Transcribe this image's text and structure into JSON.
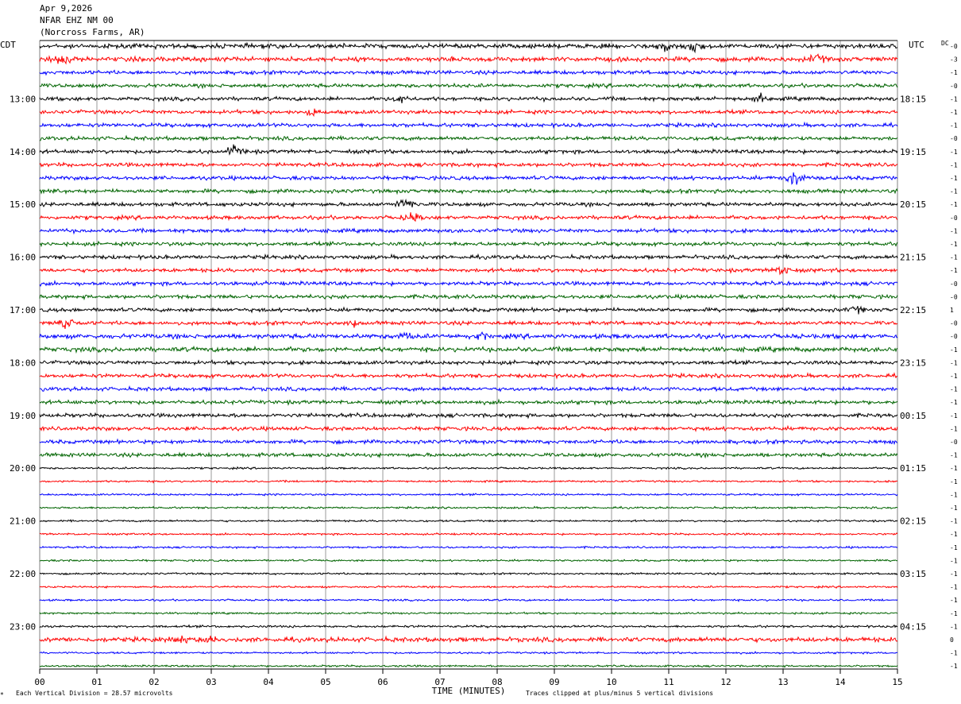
{
  "header": {
    "date": "Apr 9,2026",
    "station": "NFAR EHZ NM 00",
    "location": "(Norcross Farms, AR)"
  },
  "left_axis_title": "CDT",
  "right_axis_title": "UTC",
  "dc_title": "DC",
  "footer": {
    "scale_note": "Each Vertical Division =   28.57 microvolts",
    "clip_note": "Traces clipped at plus/minus 5 vertical divisions",
    "corner_mark": "*"
  },
  "colors": {
    "trace_cycle": [
      "#000000",
      "#ff0000",
      "#0000ff",
      "#006400"
    ],
    "grid": "#808080"
  },
  "chart_data": {
    "type": "line",
    "title": "",
    "xlabel": "TIME (MINUTES)",
    "ylabel": "",
    "xlim": [
      0,
      15
    ],
    "x_ticks": [
      "00",
      "01",
      "02",
      "03",
      "04",
      "05",
      "06",
      "07",
      "08",
      "09",
      "10",
      "11",
      "12",
      "13",
      "14",
      "15"
    ],
    "row_count": 48,
    "rows_per_hour": 4,
    "minutes_per_row": 15,
    "left_hour_labels": [
      {
        "row": 4,
        "label": "13:00"
      },
      {
        "row": 8,
        "label": "14:00"
      },
      {
        "row": 12,
        "label": "15:00"
      },
      {
        "row": 16,
        "label": "16:00"
      },
      {
        "row": 20,
        "label": "17:00"
      },
      {
        "row": 24,
        "label": "18:00"
      },
      {
        "row": 28,
        "label": "19:00"
      },
      {
        "row": 32,
        "label": "20:00"
      },
      {
        "row": 36,
        "label": "21:00"
      },
      {
        "row": 40,
        "label": "22:00"
      },
      {
        "row": 44,
        "label": "23:00"
      }
    ],
    "right_hour_labels": [
      {
        "row": 4,
        "label": "18:15"
      },
      {
        "row": 8,
        "label": "19:15"
      },
      {
        "row": 12,
        "label": "20:15"
      },
      {
        "row": 16,
        "label": "21:15"
      },
      {
        "row": 20,
        "label": "22:15"
      },
      {
        "row": 24,
        "label": "23:15"
      },
      {
        "row": 28,
        "label": "00:15"
      },
      {
        "row": 32,
        "label": "01:15"
      },
      {
        "row": 36,
        "label": "02:15"
      },
      {
        "row": 40,
        "label": "03:15"
      },
      {
        "row": 44,
        "label": "04:15"
      }
    ],
    "dc_offsets": [
      "-0",
      "-3",
      "-1",
      "-0",
      "-1",
      "-1",
      "-1",
      "-0",
      "-1",
      "-1",
      "-1",
      "-1",
      "-1",
      "-0",
      "-1",
      "-1",
      "-1",
      "-1",
      "-0",
      "-0",
      "1",
      "-0",
      "-0",
      "-1",
      "-1",
      "-1",
      "-1",
      "-1",
      "-1",
      "-1",
      "-0",
      "-1",
      "-1",
      "-1",
      "-1",
      "-1",
      "-1",
      "-1",
      "-1",
      "-1",
      "-1",
      "-1",
      "-1",
      "-1",
      "-1",
      "0",
      "-1",
      "-1"
    ],
    "amplitude_divisions": [
      1.2,
      1.2,
      1.0,
      1.0,
      1.0,
      1.0,
      1.0,
      1.0,
      1.0,
      1.0,
      1.0,
      1.0,
      1.0,
      1.0,
      1.0,
      1.0,
      1.0,
      1.0,
      1.0,
      1.0,
      1.0,
      1.0,
      1.2,
      1.2,
      1.0,
      1.0,
      1.0,
      1.0,
      1.0,
      1.0,
      1.0,
      1.0,
      0.5,
      0.5,
      0.5,
      0.5,
      0.5,
      0.5,
      0.5,
      0.5,
      0.5,
      0.5,
      0.5,
      0.5,
      0.6,
      1.2,
      0.5,
      0.5
    ],
    "notable_events": [
      {
        "row": 0,
        "minute": 10.9,
        "amp": 4
      },
      {
        "row": 0,
        "minute": 11.4,
        "amp": 6
      },
      {
        "row": 1,
        "minute": 0.4,
        "amp": 5
      },
      {
        "row": 1,
        "minute": 13.6,
        "amp": 4
      },
      {
        "row": 4,
        "minute": 12.6,
        "amp": 4
      },
      {
        "row": 4,
        "minute": 6.3,
        "amp": 3
      },
      {
        "row": 5,
        "minute": 4.8,
        "amp": 3
      },
      {
        "row": 8,
        "minute": 3.4,
        "amp": 4
      },
      {
        "row": 10,
        "minute": 13.2,
        "amp": 6
      },
      {
        "row": 11,
        "minute": 0.2,
        "amp": 3
      },
      {
        "row": 12,
        "minute": 6.4,
        "amp": 5
      },
      {
        "row": 13,
        "minute": 6.5,
        "amp": 4
      },
      {
        "row": 17,
        "minute": 13.0,
        "amp": 4
      },
      {
        "row": 20,
        "minute": 14.3,
        "amp": 3
      },
      {
        "row": 21,
        "minute": 0.5,
        "amp": 5
      },
      {
        "row": 21,
        "minute": 5.5,
        "amp": 4
      },
      {
        "row": 22,
        "minute": 6.4,
        "amp": 4
      },
      {
        "row": 22,
        "minute": 7.7,
        "amp": 4
      },
      {
        "row": 45,
        "minute": 2.5,
        "amp": 3
      },
      {
        "row": 45,
        "minute": 3.0,
        "amp": 3
      }
    ]
  }
}
